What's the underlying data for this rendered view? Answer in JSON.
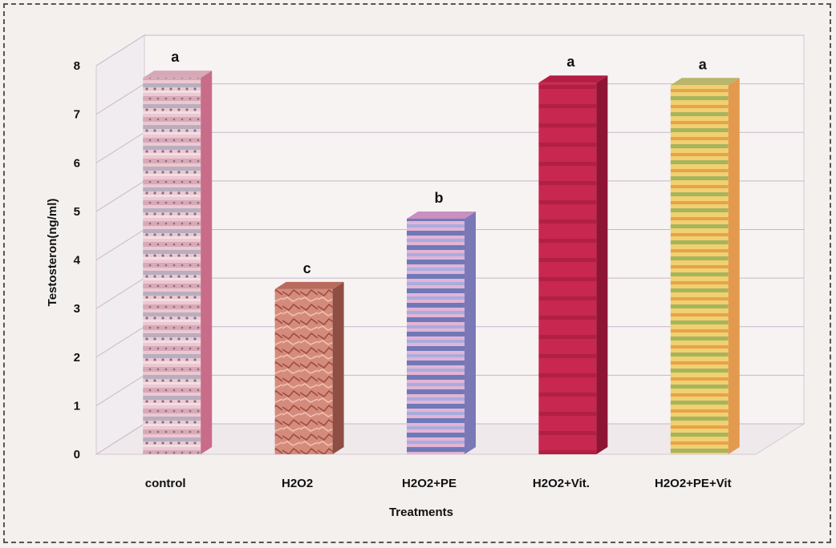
{
  "chart_data": {
    "type": "bar",
    "categories": [
      "control",
      "H2O2",
      "H2O2+PE",
      "H2O2+Vit.",
      "H2O2+PE+Vit"
    ],
    "values": [
      7.75,
      3.4,
      4.85,
      7.65,
      7.6
    ],
    "significance": [
      "a",
      "c",
      "b",
      "a",
      "a"
    ],
    "xlabel": "Treatments",
    "ylabel": "Testosteron(ng/ml)",
    "ylim": [
      0,
      8
    ],
    "yticks": [
      "0",
      "1",
      "2",
      "3",
      "4",
      "5",
      "6",
      "7",
      "8"
    ],
    "grid": true,
    "legend": "none",
    "colors": [
      "#e8b8c6",
      "#c97a6c",
      "#a8a6d8",
      "#c3254f",
      "#f0c45a"
    ]
  }
}
